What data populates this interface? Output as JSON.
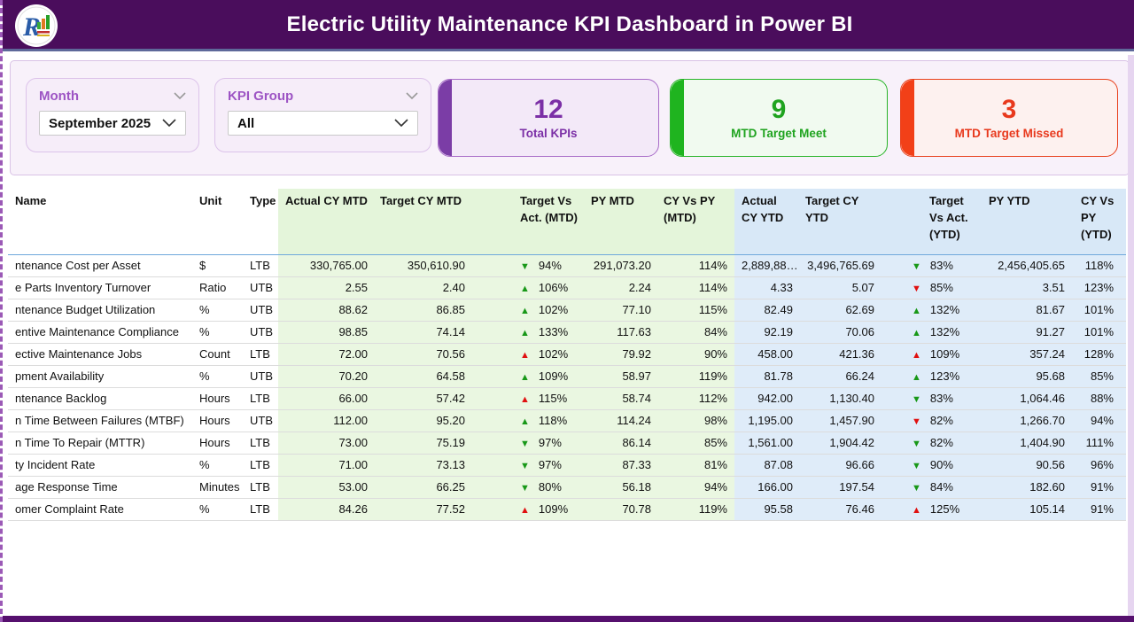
{
  "header": {
    "title": "Electric Utility Maintenance KPI Dashboard in Power BI"
  },
  "filters": {
    "month": {
      "label": "Month",
      "value": "September 2025"
    },
    "kpi_group": {
      "label": "KPI Group",
      "value": "All"
    }
  },
  "kpi_cards": {
    "total": {
      "value": "12",
      "label": "Total KPIs"
    },
    "meet": {
      "value": "9",
      "label": "MTD Target Meet"
    },
    "missed": {
      "value": "3",
      "label": "MTD Target Missed"
    }
  },
  "colors": {
    "titlebar": "#4a0d5c",
    "accent_purple": "#7b2fa6",
    "accent_green": "#1fa31f",
    "accent_red": "#e8391d",
    "mtd_section_bg": "#e4f5da",
    "ytd_section_bg": "#d8e8f7",
    "trend_up_green": "#189818",
    "trend_down_red": "#e01010"
  },
  "table": {
    "columns": [
      "Name",
      "Unit",
      "Type",
      "Actual CY MTD",
      "Target CY MTD",
      "Target Vs Act. (MTD)",
      "PY MTD",
      "CY Vs PY (MTD)",
      "Actual CY YTD",
      "Target CY YTD",
      "Target Vs Act. (YTD)",
      "PY YTD",
      "CY Vs PY (YTD)"
    ],
    "rows": [
      {
        "name": "ntenance Cost per Asset",
        "unit": "$",
        "type": "LTB",
        "actual_mtd": "330,765.00",
        "target_mtd": "350,610.90",
        "tva_mtd": {
          "dir": "down",
          "color": "green",
          "value": "94%"
        },
        "py_mtd": "291,073.20",
        "cy_vs_py_mtd": "114%",
        "actual_ytd": "2,889,88…",
        "target_ytd": "3,496,765.69",
        "tva_ytd": {
          "dir": "down",
          "color": "green",
          "value": "83%"
        },
        "py_ytd": "2,456,405.65",
        "cy_vs_py_ytd": "118%"
      },
      {
        "name": "e Parts Inventory Turnover",
        "unit": "Ratio",
        "type": "UTB",
        "actual_mtd": "2.55",
        "target_mtd": "2.40",
        "tva_mtd": {
          "dir": "up",
          "color": "green",
          "value": "106%"
        },
        "py_mtd": "2.24",
        "cy_vs_py_mtd": "114%",
        "actual_ytd": "4.33",
        "target_ytd": "5.07",
        "tva_ytd": {
          "dir": "down",
          "color": "red",
          "value": "85%"
        },
        "py_ytd": "3.51",
        "cy_vs_py_ytd": "123%"
      },
      {
        "name": "ntenance Budget Utilization",
        "unit": "%",
        "type": "UTB",
        "actual_mtd": "88.62",
        "target_mtd": "86.85",
        "tva_mtd": {
          "dir": "up",
          "color": "green",
          "value": "102%"
        },
        "py_mtd": "77.10",
        "cy_vs_py_mtd": "115%",
        "actual_ytd": "82.49",
        "target_ytd": "62.69",
        "tva_ytd": {
          "dir": "up",
          "color": "green",
          "value": "132%"
        },
        "py_ytd": "81.67",
        "cy_vs_py_ytd": "101%"
      },
      {
        "name": "entive Maintenance Compliance",
        "unit": "%",
        "type": "UTB",
        "actual_mtd": "98.85",
        "target_mtd": "74.14",
        "tva_mtd": {
          "dir": "up",
          "color": "green",
          "value": "133%"
        },
        "py_mtd": "117.63",
        "cy_vs_py_mtd": "84%",
        "actual_ytd": "92.19",
        "target_ytd": "70.06",
        "tva_ytd": {
          "dir": "up",
          "color": "green",
          "value": "132%"
        },
        "py_ytd": "91.27",
        "cy_vs_py_ytd": "101%"
      },
      {
        "name": "ective Maintenance Jobs",
        "unit": "Count",
        "type": "LTB",
        "actual_mtd": "72.00",
        "target_mtd": "70.56",
        "tva_mtd": {
          "dir": "up",
          "color": "red",
          "value": "102%"
        },
        "py_mtd": "79.92",
        "cy_vs_py_mtd": "90%",
        "actual_ytd": "458.00",
        "target_ytd": "421.36",
        "tva_ytd": {
          "dir": "up",
          "color": "red",
          "value": "109%"
        },
        "py_ytd": "357.24",
        "cy_vs_py_ytd": "128%"
      },
      {
        "name": "pment Availability",
        "unit": "%",
        "type": "UTB",
        "actual_mtd": "70.20",
        "target_mtd": "64.58",
        "tva_mtd": {
          "dir": "up",
          "color": "green",
          "value": "109%"
        },
        "py_mtd": "58.97",
        "cy_vs_py_mtd": "119%",
        "actual_ytd": "81.78",
        "target_ytd": "66.24",
        "tva_ytd": {
          "dir": "up",
          "color": "green",
          "value": "123%"
        },
        "py_ytd": "95.68",
        "cy_vs_py_ytd": "85%"
      },
      {
        "name": "ntenance Backlog",
        "unit": "Hours",
        "type": "LTB",
        "actual_mtd": "66.00",
        "target_mtd": "57.42",
        "tva_mtd": {
          "dir": "up",
          "color": "red",
          "value": "115%"
        },
        "py_mtd": "58.74",
        "cy_vs_py_mtd": "112%",
        "actual_ytd": "942.00",
        "target_ytd": "1,130.40",
        "tva_ytd": {
          "dir": "down",
          "color": "green",
          "value": "83%"
        },
        "py_ytd": "1,064.46",
        "cy_vs_py_ytd": "88%"
      },
      {
        "name": "n Time Between Failures (MTBF)",
        "unit": "Hours",
        "type": "UTB",
        "actual_mtd": "112.00",
        "target_mtd": "95.20",
        "tva_mtd": {
          "dir": "up",
          "color": "green",
          "value": "118%"
        },
        "py_mtd": "114.24",
        "cy_vs_py_mtd": "98%",
        "actual_ytd": "1,195.00",
        "target_ytd": "1,457.90",
        "tva_ytd": {
          "dir": "down",
          "color": "red",
          "value": "82%"
        },
        "py_ytd": "1,266.70",
        "cy_vs_py_ytd": "94%"
      },
      {
        "name": "n Time To Repair (MTTR)",
        "unit": "Hours",
        "type": "LTB",
        "actual_mtd": "73.00",
        "target_mtd": "75.19",
        "tva_mtd": {
          "dir": "down",
          "color": "green",
          "value": "97%"
        },
        "py_mtd": "86.14",
        "cy_vs_py_mtd": "85%",
        "actual_ytd": "1,561.00",
        "target_ytd": "1,904.42",
        "tva_ytd": {
          "dir": "down",
          "color": "green",
          "value": "82%"
        },
        "py_ytd": "1,404.90",
        "cy_vs_py_ytd": "111%"
      },
      {
        "name": "ty Incident Rate",
        "unit": "%",
        "type": "LTB",
        "actual_mtd": "71.00",
        "target_mtd": "73.13",
        "tva_mtd": {
          "dir": "down",
          "color": "green",
          "value": "97%"
        },
        "py_mtd": "87.33",
        "cy_vs_py_mtd": "81%",
        "actual_ytd": "87.08",
        "target_ytd": "96.66",
        "tva_ytd": {
          "dir": "down",
          "color": "green",
          "value": "90%"
        },
        "py_ytd": "90.56",
        "cy_vs_py_ytd": "96%"
      },
      {
        "name": "age Response Time",
        "unit": "Minutes",
        "type": "LTB",
        "actual_mtd": "53.00",
        "target_mtd": "66.25",
        "tva_mtd": {
          "dir": "down",
          "color": "green",
          "value": "80%"
        },
        "py_mtd": "56.18",
        "cy_vs_py_mtd": "94%",
        "actual_ytd": "166.00",
        "target_ytd": "197.54",
        "tva_ytd": {
          "dir": "down",
          "color": "green",
          "value": "84%"
        },
        "py_ytd": "182.60",
        "cy_vs_py_ytd": "91%"
      },
      {
        "name": "omer Complaint Rate",
        "unit": "%",
        "type": "LTB",
        "actual_mtd": "84.26",
        "target_mtd": "77.52",
        "tva_mtd": {
          "dir": "up",
          "color": "red",
          "value": "109%"
        },
        "py_mtd": "70.78",
        "cy_vs_py_mtd": "119%",
        "actual_ytd": "95.58",
        "target_ytd": "76.46",
        "tva_ytd": {
          "dir": "up",
          "color": "red",
          "value": "125%"
        },
        "py_ytd": "105.14",
        "cy_vs_py_ytd": "91%"
      }
    ]
  }
}
